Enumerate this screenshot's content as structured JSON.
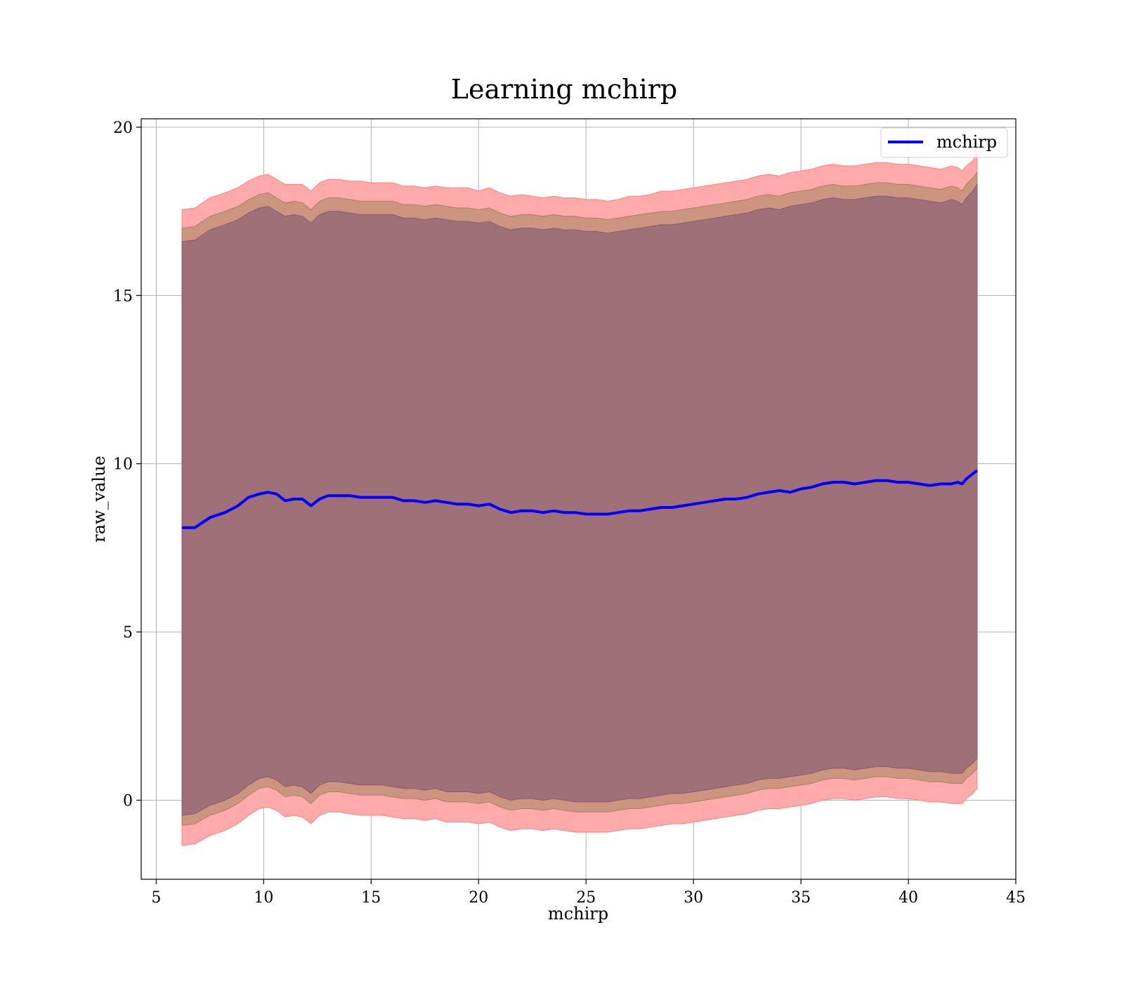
{
  "chart_data": {
    "type": "line",
    "title": "Learning mchirp",
    "xlabel": "mchirp",
    "ylabel": "raw_value",
    "xlim": [
      4.3,
      45
    ],
    "ylim": [
      -2.35,
      20.25
    ],
    "xticks": [
      5,
      10,
      15,
      20,
      25,
      30,
      35,
      40,
      45
    ],
    "yticks": [
      0,
      5,
      10,
      15,
      20
    ],
    "xtick_labels": [
      "5",
      "10",
      "15",
      "20",
      "25",
      "30",
      "35",
      "40",
      "45"
    ],
    "ytick_labels": [
      "0",
      "5",
      "10",
      "15",
      "20"
    ],
    "grid": true,
    "legend": {
      "position": "top-right",
      "entries": [
        "mchirp"
      ]
    },
    "colors": {
      "line": "#0000ff",
      "band_outer": "#ffaaaa",
      "band_middle": "#cc9580",
      "band_inner": "#a07078"
    },
    "x": [
      6.2,
      6.8,
      7.5,
      8.2,
      8.8,
      9.3,
      9.8,
      10.2,
      10.6,
      11.0,
      11.4,
      11.8,
      12.2,
      12.6,
      13.0,
      13.5,
      14.0,
      14.5,
      15.0,
      15.5,
      16.0,
      16.5,
      17.0,
      17.5,
      18.0,
      18.5,
      19.0,
      19.5,
      20.0,
      20.5,
      21.0,
      21.5,
      22.0,
      22.5,
      23.0,
      23.5,
      24.0,
      24.5,
      25.0,
      25.5,
      26.0,
      26.5,
      27.0,
      27.5,
      28.0,
      28.5,
      29.0,
      29.5,
      30.0,
      30.5,
      31.0,
      31.5,
      32.0,
      32.5,
      33.0,
      33.5,
      34.0,
      34.5,
      35.0,
      35.5,
      36.0,
      36.5,
      37.0,
      37.5,
      38.0,
      38.5,
      39.0,
      39.5,
      40.0,
      40.5,
      41.0,
      41.5,
      42.0,
      42.3,
      42.5,
      42.7,
      43.0,
      43.2
    ],
    "series": [
      {
        "name": "mchirp",
        "values": [
          8.1,
          8.1,
          8.4,
          8.55,
          8.75,
          9.0,
          9.1,
          9.15,
          9.1,
          8.9,
          8.95,
          8.95,
          8.75,
          8.95,
          9.05,
          9.05,
          9.05,
          9.0,
          9.0,
          9.0,
          9.0,
          8.9,
          8.9,
          8.85,
          8.9,
          8.85,
          8.8,
          8.8,
          8.75,
          8.8,
          8.65,
          8.55,
          8.6,
          8.6,
          8.55,
          8.6,
          8.55,
          8.55,
          8.5,
          8.5,
          8.5,
          8.55,
          8.6,
          8.6,
          8.65,
          8.7,
          8.7,
          8.75,
          8.8,
          8.85,
          8.9,
          8.95,
          8.95,
          9.0,
          9.1,
          9.15,
          9.2,
          9.15,
          9.25,
          9.3,
          9.4,
          9.45,
          9.45,
          9.4,
          9.45,
          9.5,
          9.5,
          9.45,
          9.45,
          9.4,
          9.35,
          9.4,
          9.4,
          9.45,
          9.4,
          9.55,
          9.7,
          9.8
        ]
      }
    ],
    "bands": [
      {
        "role": "outer",
        "upper": [
          17.55,
          17.6,
          17.9,
          18.05,
          18.2,
          18.4,
          18.55,
          18.6,
          18.45,
          18.3,
          18.3,
          18.3,
          18.1,
          18.35,
          18.45,
          18.45,
          18.4,
          18.4,
          18.35,
          18.35,
          18.35,
          18.25,
          18.25,
          18.2,
          18.25,
          18.2,
          18.2,
          18.2,
          18.1,
          18.2,
          18.05,
          17.95,
          18.0,
          17.95,
          17.9,
          17.95,
          17.9,
          17.9,
          17.85,
          17.85,
          17.8,
          17.85,
          17.95,
          17.95,
          18.0,
          18.1,
          18.1,
          18.15,
          18.2,
          18.25,
          18.3,
          18.35,
          18.4,
          18.45,
          18.55,
          18.6,
          18.55,
          18.65,
          18.7,
          18.75,
          18.85,
          18.9,
          18.85,
          18.85,
          18.9,
          18.95,
          18.95,
          18.9,
          18.9,
          18.85,
          18.8,
          18.75,
          18.85,
          18.8,
          18.7,
          18.85,
          19.0,
          19.25
        ],
        "lower": [
          -1.35,
          -1.3,
          -1.05,
          -0.9,
          -0.7,
          -0.45,
          -0.25,
          -0.2,
          -0.3,
          -0.5,
          -0.45,
          -0.5,
          -0.7,
          -0.45,
          -0.35,
          -0.35,
          -0.4,
          -0.45,
          -0.45,
          -0.45,
          -0.5,
          -0.55,
          -0.55,
          -0.6,
          -0.55,
          -0.65,
          -0.65,
          -0.65,
          -0.7,
          -0.65,
          -0.8,
          -0.9,
          -0.85,
          -0.85,
          -0.9,
          -0.85,
          -0.9,
          -0.95,
          -0.95,
          -0.95,
          -0.95,
          -0.9,
          -0.85,
          -0.85,
          -0.8,
          -0.75,
          -0.7,
          -0.7,
          -0.65,
          -0.6,
          -0.55,
          -0.5,
          -0.45,
          -0.4,
          -0.3,
          -0.25,
          -0.25,
          -0.2,
          -0.15,
          -0.1,
          0.0,
          0.05,
          0.05,
          0.0,
          0.05,
          0.1,
          0.1,
          0.05,
          0.05,
          0.0,
          -0.05,
          -0.05,
          -0.1,
          -0.1,
          -0.1,
          0.05,
          0.2,
          0.35
        ]
      },
      {
        "role": "middle",
        "upper": [
          17.0,
          17.05,
          17.35,
          17.5,
          17.65,
          17.85,
          18.0,
          18.05,
          17.9,
          17.75,
          17.8,
          17.75,
          17.55,
          17.8,
          17.9,
          17.9,
          17.85,
          17.8,
          17.8,
          17.8,
          17.8,
          17.7,
          17.7,
          17.65,
          17.7,
          17.65,
          17.6,
          17.6,
          17.55,
          17.6,
          17.45,
          17.35,
          17.4,
          17.4,
          17.35,
          17.4,
          17.35,
          17.35,
          17.3,
          17.3,
          17.25,
          17.3,
          17.35,
          17.4,
          17.45,
          17.5,
          17.5,
          17.55,
          17.6,
          17.65,
          17.7,
          17.75,
          17.8,
          17.85,
          17.95,
          18.0,
          17.95,
          18.05,
          18.1,
          18.15,
          18.25,
          18.3,
          18.25,
          18.25,
          18.3,
          18.35,
          18.35,
          18.3,
          18.3,
          18.25,
          18.2,
          18.15,
          18.25,
          18.2,
          18.1,
          18.3,
          18.5,
          18.65
        ],
        "lower": [
          -0.75,
          -0.7,
          -0.45,
          -0.3,
          -0.1,
          0.15,
          0.35,
          0.4,
          0.3,
          0.1,
          0.15,
          0.1,
          -0.1,
          0.15,
          0.25,
          0.25,
          0.2,
          0.15,
          0.15,
          0.15,
          0.1,
          0.05,
          0.05,
          0.0,
          0.05,
          -0.05,
          -0.05,
          -0.05,
          -0.1,
          -0.05,
          -0.2,
          -0.3,
          -0.25,
          -0.25,
          -0.3,
          -0.25,
          -0.3,
          -0.35,
          -0.35,
          -0.35,
          -0.35,
          -0.3,
          -0.25,
          -0.25,
          -0.2,
          -0.15,
          -0.1,
          -0.1,
          -0.05,
          0.0,
          0.05,
          0.1,
          0.15,
          0.2,
          0.3,
          0.35,
          0.35,
          0.4,
          0.45,
          0.5,
          0.6,
          0.65,
          0.65,
          0.6,
          0.65,
          0.7,
          0.7,
          0.65,
          0.65,
          0.6,
          0.55,
          0.55,
          0.5,
          0.5,
          0.5,
          0.65,
          0.8,
          0.95
        ]
      },
      {
        "role": "inner",
        "upper": [
          16.6,
          16.65,
          16.95,
          17.1,
          17.25,
          17.45,
          17.6,
          17.65,
          17.5,
          17.35,
          17.4,
          17.35,
          17.15,
          17.4,
          17.5,
          17.5,
          17.45,
          17.4,
          17.4,
          17.4,
          17.4,
          17.3,
          17.3,
          17.25,
          17.3,
          17.25,
          17.2,
          17.2,
          17.15,
          17.2,
          17.05,
          16.95,
          17.0,
          17.0,
          16.95,
          17.0,
          16.95,
          16.95,
          16.9,
          16.9,
          16.85,
          16.9,
          16.95,
          17.0,
          17.05,
          17.1,
          17.1,
          17.15,
          17.2,
          17.25,
          17.3,
          17.35,
          17.4,
          17.45,
          17.55,
          17.6,
          17.55,
          17.65,
          17.7,
          17.75,
          17.85,
          17.9,
          17.85,
          17.85,
          17.9,
          17.95,
          17.95,
          17.9,
          17.9,
          17.85,
          17.8,
          17.75,
          17.85,
          17.8,
          17.7,
          17.9,
          18.1,
          18.3
        ],
        "lower": [
          -0.45,
          -0.4,
          -0.15,
          0.0,
          0.2,
          0.45,
          0.65,
          0.7,
          0.6,
          0.4,
          0.45,
          0.4,
          0.2,
          0.45,
          0.55,
          0.55,
          0.5,
          0.45,
          0.45,
          0.45,
          0.4,
          0.35,
          0.35,
          0.3,
          0.35,
          0.25,
          0.25,
          0.25,
          0.2,
          0.25,
          0.1,
          0.0,
          0.05,
          0.05,
          0.0,
          0.05,
          0.0,
          -0.05,
          -0.05,
          -0.05,
          -0.05,
          0.0,
          0.05,
          0.05,
          0.1,
          0.15,
          0.2,
          0.2,
          0.25,
          0.3,
          0.35,
          0.4,
          0.45,
          0.5,
          0.6,
          0.65,
          0.65,
          0.7,
          0.75,
          0.8,
          0.9,
          0.95,
          0.95,
          0.9,
          0.95,
          1.0,
          1.0,
          0.95,
          0.95,
          0.9,
          0.85,
          0.85,
          0.8,
          0.8,
          0.8,
          0.95,
          1.1,
          1.25
        ]
      }
    ]
  }
}
